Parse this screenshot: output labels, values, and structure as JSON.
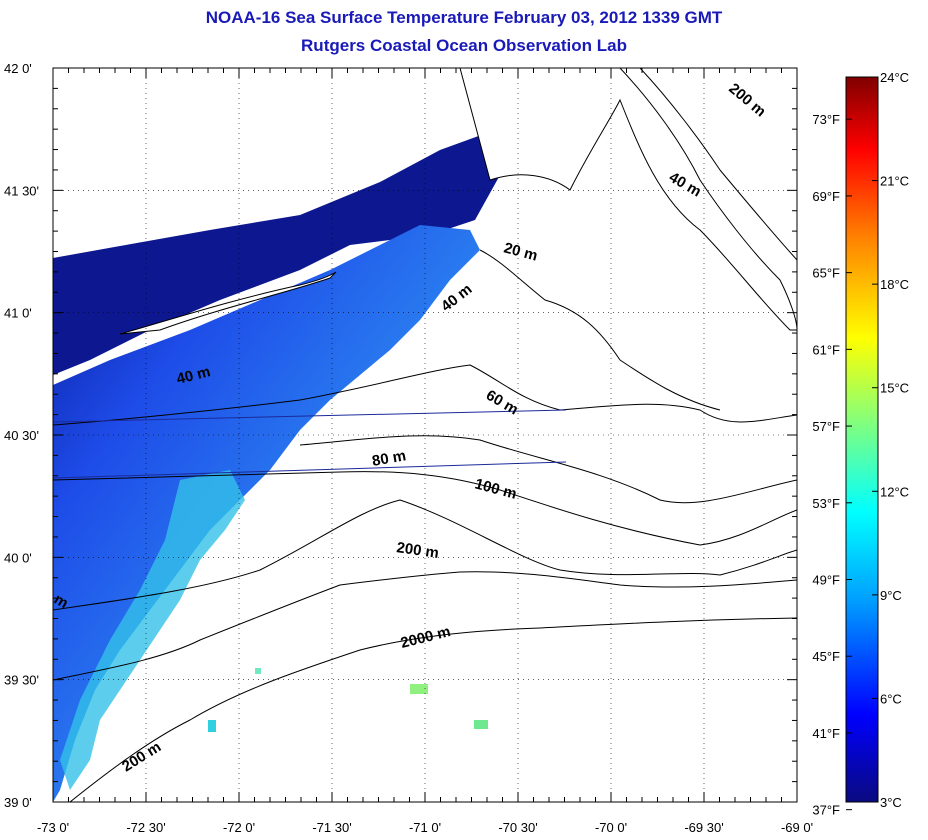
{
  "title": "NOAA-16 Sea Surface Temperature February 03, 2012 1339 GMT",
  "subtitle": "Rutgers Coastal Ocean Observation Lab",
  "map": {
    "lon_range": [
      -73,
      -69
    ],
    "lat_range": [
      39,
      42
    ],
    "lon_ticks": [
      "-73 0'",
      "-72 30'",
      "-72 0'",
      "-71 30'",
      "-71 0'",
      "-70 30'",
      "-70 0'",
      "-69 30'",
      "-69 0'"
    ],
    "lat_ticks": [
      "39 0'",
      "39 30'",
      "40 0'",
      "40 30'",
      "41 0'",
      "41 30'",
      "42 0'"
    ],
    "grid": true,
    "contour_labels": [
      "200 m",
      "40 m",
      "20 m",
      "40 m",
      "40 m",
      "60 m",
      "80 m",
      "100 m",
      "200 m",
      "2000 m",
      "200 m",
      "m"
    ]
  },
  "colorbar": {
    "celsius_labels": [
      "24°C",
      "21°C",
      "18°C",
      "15°C",
      "12°C",
      "9°C",
      "6°C",
      "3°C"
    ],
    "fahrenheit_labels": [
      "73°F",
      "69°F",
      "65°F",
      "61°F",
      "57°F",
      "53°F",
      "49°F",
      "45°F",
      "41°F",
      "37°F"
    ],
    "celsius_range": [
      3,
      24
    ],
    "colors": [
      "#0a0a80",
      "#0000ff",
      "#00a0ff",
      "#00ffff",
      "#7fff80",
      "#ffff00",
      "#ff8000",
      "#ff0000",
      "#800000"
    ]
  },
  "colors": {
    "title": "#1a1ab8",
    "land": "#ffffff",
    "coast": "#000000"
  }
}
